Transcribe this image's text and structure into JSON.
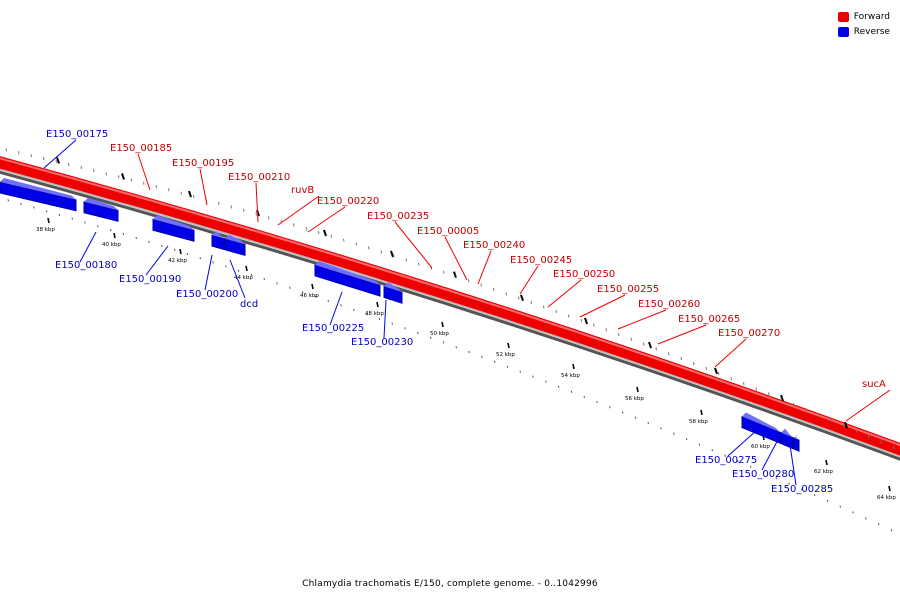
{
  "legend": {
    "forward": {
      "label": "Forward",
      "color": "#ff0000"
    },
    "reverse": {
      "label": "Reverse",
      "color": "#0000ff"
    }
  },
  "caption": "Chlamydia trachomatis E/150, complete genome. - 0..1042996",
  "ticks": [
    "38 kbp",
    "40 kbp",
    "42 kbp",
    "44 kbp",
    "46 kbp",
    "48 kbp",
    "50 kbp",
    "52 kbp",
    "54 kbp",
    "56 kbp",
    "58 kbp",
    "60 kbp",
    "62 kbp",
    "64 kbp"
  ],
  "forward_labels": [
    "E150_00185",
    "E150_00195",
    "E150_00210",
    "ruvB",
    "E150_00220",
    "E150_00235",
    "E150_00005",
    "E150_00240",
    "E150_00245",
    "E150_00250",
    "E150_00255",
    "E150_00260",
    "E150_00265",
    "E150_00270",
    "sucA"
  ],
  "reverse_labels": [
    "E150_00175",
    "E150_00180",
    "E150_00190",
    "E150_00200",
    "dcd",
    "E150_00225",
    "E150_00230",
    "E150_00275",
    "E150_00280",
    "E150_00285"
  ]
}
